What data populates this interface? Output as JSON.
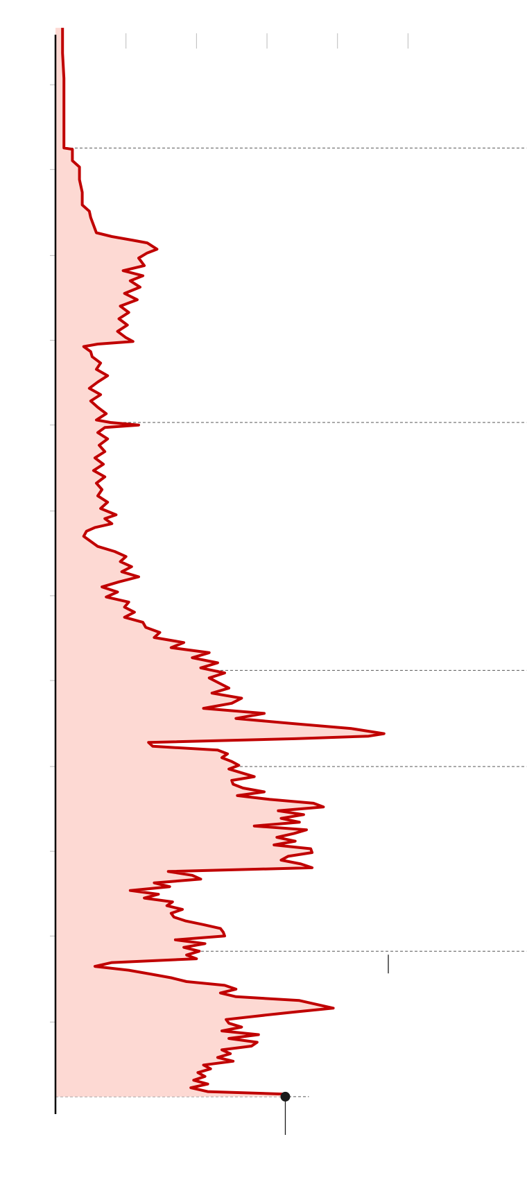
{
  "chart_data": {
    "type": "area",
    "orientation": "vertical",
    "title": "",
    "xlabel": "",
    "ylabel": "",
    "grid": false,
    "colors": {
      "line": "#c00000",
      "fill": "#fdd9d3",
      "axis": "#000000",
      "tick": "#bbbbbb",
      "reference": "#555555",
      "marker": "#1a1a1a"
    },
    "series": [
      {
        "values": [
          [
            0,
            0.5
          ],
          [
            20,
            0.5
          ],
          [
            40,
            0.6
          ],
          [
            60,
            0.6
          ],
          [
            80,
            0.6
          ],
          [
            95,
            0.6
          ],
          [
            96,
            1.2
          ],
          [
            105,
            1.2
          ],
          [
            110,
            1.7
          ],
          [
            120,
            1.7
          ],
          [
            130,
            1.9
          ],
          [
            140,
            1.9
          ],
          [
            145,
            2.4
          ],
          [
            150,
            2.5
          ],
          [
            162,
            2.9
          ],
          [
            165,
            4.0
          ],
          [
            168,
            5.5
          ],
          [
            170,
            6.5
          ],
          [
            175,
            7.2
          ],
          [
            178,
            6.5
          ],
          [
            182,
            5.9
          ],
          [
            188,
            6.3
          ],
          [
            192,
            4.8
          ],
          [
            196,
            6.2
          ],
          [
            200,
            5.3
          ],
          [
            205,
            6.0
          ],
          [
            210,
            4.9
          ],
          [
            215,
            5.8
          ],
          [
            220,
            4.6
          ],
          [
            225,
            5.2
          ],
          [
            230,
            4.5
          ],
          [
            235,
            5.1
          ],
          [
            240,
            4.4
          ],
          [
            245,
            5.0
          ],
          [
            248,
            5.5
          ],
          [
            250,
            3.0
          ],
          [
            252,
            2.0
          ],
          [
            256,
            2.5
          ],
          [
            260,
            2.6
          ],
          [
            265,
            3.2
          ],
          [
            270,
            2.9
          ],
          [
            275,
            3.7
          ],
          [
            280,
            3.0
          ],
          [
            285,
            2.4
          ],
          [
            290,
            3.2
          ],
          [
            295,
            2.5
          ],
          [
            300,
            3.0
          ],
          [
            305,
            3.6
          ],
          [
            310,
            2.9
          ],
          [
            312,
            3.9
          ],
          [
            314,
            5.9
          ],
          [
            316,
            3.5
          ],
          [
            320,
            3.0
          ],
          [
            325,
            3.7
          ],
          [
            330,
            3.1
          ],
          [
            335,
            3.5
          ],
          [
            340,
            2.8
          ],
          [
            345,
            3.4
          ],
          [
            350,
            2.7
          ],
          [
            355,
            3.5
          ],
          [
            360,
            2.9
          ],
          [
            365,
            3.3
          ],
          [
            370,
            3.0
          ],
          [
            375,
            3.7
          ],
          [
            380,
            3.2
          ],
          [
            385,
            4.3
          ],
          [
            388,
            3.5
          ],
          [
            392,
            4.0
          ],
          [
            395,
            2.8
          ],
          [
            398,
            2.2
          ],
          [
            402,
            2.0
          ],
          [
            406,
            2.5
          ],
          [
            410,
            3.0
          ],
          [
            414,
            4.2
          ],
          [
            418,
            5.0
          ],
          [
            422,
            4.6
          ],
          [
            426,
            5.4
          ],
          [
            430,
            4.7
          ],
          [
            434,
            5.9
          ],
          [
            438,
            4.5
          ],
          [
            442,
            3.3
          ],
          [
            446,
            4.4
          ],
          [
            450,
            3.6
          ],
          [
            454,
            5.2
          ],
          [
            458,
            4.9
          ],
          [
            462,
            5.6
          ],
          [
            466,
            4.9
          ],
          [
            470,
            6.2
          ],
          [
            474,
            6.4
          ],
          [
            478,
            7.4
          ],
          [
            482,
            7.0
          ],
          [
            486,
            9.1
          ],
          [
            490,
            8.2
          ],
          [
            494,
            10.9
          ],
          [
            498,
            9.7
          ],
          [
            502,
            11.5
          ],
          [
            506,
            10.3
          ],
          [
            510,
            12.0
          ],
          [
            514,
            10.9
          ],
          [
            518,
            11.6
          ],
          [
            522,
            12.3
          ],
          [
            526,
            11.1
          ],
          [
            530,
            13.2
          ],
          [
            534,
            12.5
          ],
          [
            538,
            10.5
          ],
          [
            542,
            14.8
          ],
          [
            546,
            12.8
          ],
          [
            550,
            16.8
          ],
          [
            554,
            21.0
          ],
          [
            558,
            23.3
          ],
          [
            560,
            22.2
          ],
          [
            562,
            17.0
          ],
          [
            565,
            6.6
          ],
          [
            568,
            6.9
          ],
          [
            571,
            11.5
          ],
          [
            574,
            12.2
          ],
          [
            577,
            11.8
          ],
          [
            580,
            12.5
          ],
          [
            583,
            13.0
          ],
          [
            586,
            12.3
          ],
          [
            589,
            13.2
          ],
          [
            592,
            14.1
          ],
          [
            595,
            12.5
          ],
          [
            598,
            12.6
          ],
          [
            601,
            13.3
          ],
          [
            604,
            14.8
          ],
          [
            607,
            12.9
          ],
          [
            610,
            15.2
          ],
          [
            613,
            18.3
          ],
          [
            616,
            19.0
          ],
          [
            619,
            15.8
          ],
          [
            622,
            17.6
          ],
          [
            625,
            16.0
          ],
          [
            628,
            17.3
          ],
          [
            631,
            14.1
          ],
          [
            634,
            17.8
          ],
          [
            637,
            16.9
          ],
          [
            640,
            15.7
          ],
          [
            643,
            17.0
          ],
          [
            646,
            15.5
          ],
          [
            649,
            18.1
          ],
          [
            652,
            18.2
          ],
          [
            655,
            16.5
          ],
          [
            658,
            16.0
          ],
          [
            661,
            17.4
          ],
          [
            664,
            18.2
          ],
          [
            667,
            8.0
          ],
          [
            670,
            9.7
          ],
          [
            673,
            10.3
          ],
          [
            676,
            7.0
          ],
          [
            679,
            8.1
          ],
          [
            682,
            5.3
          ],
          [
            685,
            7.3
          ],
          [
            688,
            6.3
          ],
          [
            691,
            8.3
          ],
          [
            694,
            7.9
          ],
          [
            697,
            9.0
          ],
          [
            700,
            8.2
          ],
          [
            703,
            8.4
          ],
          [
            706,
            9.2
          ],
          [
            709,
            10.5
          ],
          [
            712,
            11.7
          ],
          [
            715,
            11.9
          ],
          [
            718,
            12.0
          ],
          [
            721,
            8.5
          ],
          [
            724,
            10.6
          ],
          [
            727,
            9.1
          ],
          [
            730,
            10.2
          ],
          [
            733,
            9.3
          ],
          [
            736,
            10.0
          ],
          [
            739,
            4.0
          ],
          [
            742,
            2.8
          ],
          [
            745,
            5.2
          ],
          [
            748,
            6.7
          ],
          [
            751,
            8.2
          ],
          [
            754,
            9.3
          ],
          [
            757,
            12.0
          ],
          [
            760,
            12.8
          ],
          [
            763,
            11.7
          ],
          [
            766,
            12.8
          ],
          [
            769,
            17.3
          ],
          [
            772,
            18.5
          ],
          [
            775,
            19.7
          ],
          [
            778,
            17.0
          ],
          [
            781,
            14.5
          ],
          [
            784,
            12.1
          ],
          [
            787,
            12.3
          ],
          [
            790,
            13.2
          ],
          [
            793,
            11.8
          ],
          [
            796,
            14.4
          ],
          [
            799,
            12.3
          ],
          [
            802,
            14.3
          ],
          [
            805,
            13.9
          ],
          [
            808,
            11.8
          ],
          [
            811,
            12.4
          ],
          [
            814,
            11.5
          ],
          [
            817,
            12.6
          ],
          [
            820,
            10.5
          ],
          [
            823,
            11.0
          ],
          [
            826,
            10.1
          ],
          [
            829,
            10.6
          ],
          [
            832,
            9.8
          ],
          [
            835,
            10.8
          ],
          [
            838,
            9.6
          ],
          [
            841,
            10.8
          ],
          [
            843,
            16.3
          ],
          [
            845,
            16.3
          ]
        ]
      }
    ],
    "marker": {
      "x": 845,
      "y": 16.3
    },
    "reference_lines": [
      95,
      312,
      508,
      584,
      730,
      845
    ],
    "xlim": [
      -22,
      918
    ],
    "ylim": [
      0,
      30
    ],
    "x_ticks": [
      45,
      112,
      180,
      247,
      314,
      382,
      449,
      516,
      584,
      651,
      718,
      786
    ],
    "y_ticks": [
      5,
      10,
      15,
      20,
      25
    ]
  }
}
